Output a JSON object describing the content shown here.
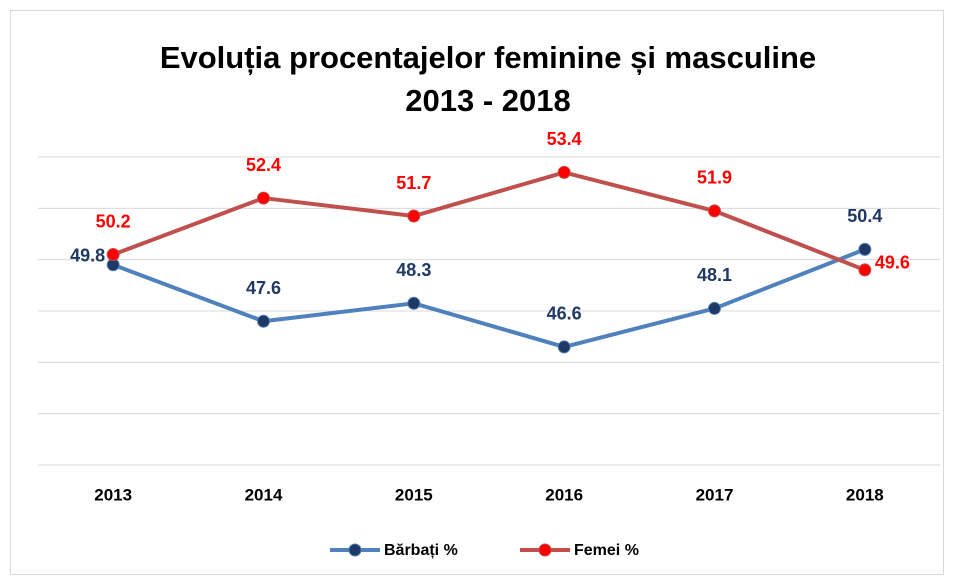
{
  "chart_data": {
    "type": "line",
    "title": [
      "Evoluția procentajelor feminine și masculine",
      "2013 - 2018"
    ],
    "categories": [
      "2013",
      "2014",
      "2015",
      "2016",
      "2017",
      "2018"
    ],
    "series": [
      {
        "name": "Bărbați %",
        "color": "#4f81bd",
        "marker_color": "#1f3864",
        "label_color": "#1f3864",
        "values": [
          49.8,
          47.6,
          48.3,
          46.6,
          48.1,
          50.4
        ]
      },
      {
        "name": "Femei %",
        "color": "#c0504d",
        "marker_color": "#ff0000",
        "label_color": "#ff0000",
        "values": [
          50.2,
          52.4,
          51.7,
          53.4,
          51.9,
          49.6
        ]
      }
    ],
    "ylim": [
      42,
      54
    ],
    "yticks": [
      42,
      44,
      46,
      48,
      50,
      52,
      54
    ],
    "grid": true,
    "show_ytick_labels": false,
    "legend": "bottom"
  }
}
